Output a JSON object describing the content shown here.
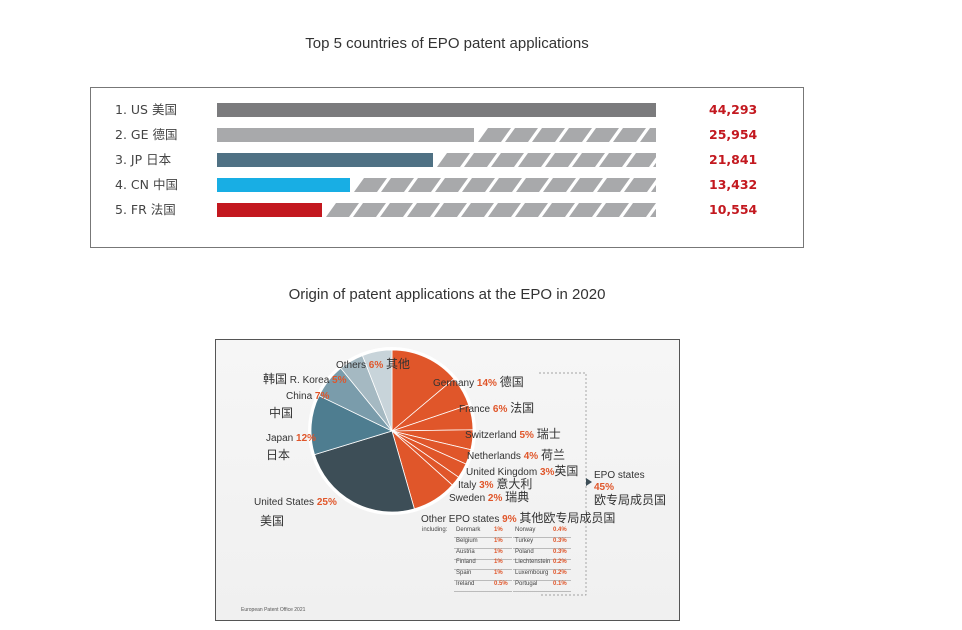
{
  "charts": {
    "bar_title": "Top 5 countries of EPO patent applications",
    "pie_title": "Origin of patent applications at the EPO in 2020"
  },
  "chart_data": [
    {
      "type": "bar",
      "title": "Top 5 countries of EPO patent applications",
      "categories": [
        "1. US 美国",
        "2. GE 德国",
        "3. JP  日本",
        "4. CN 中国",
        "5. FR 法国"
      ],
      "values": [
        44293,
        25954,
        21841,
        13432,
        10554
      ],
      "value_labels": [
        "44,293",
        "25,954",
        "21,841",
        "13,432",
        "10,554"
      ],
      "colors": [
        "#7b7b7d",
        "#a8a9ab",
        "#4f7184",
        "#18aee4",
        "#c3181f"
      ],
      "xlim": [
        0,
        44293
      ]
    },
    {
      "type": "pie",
      "title": "Origin of patent applications at the EPO in 2020",
      "slices": [
        {
          "label": "Germany",
          "cn": "德国",
          "pct_text": "14%",
          "value": 14,
          "color": "#e0562a"
        },
        {
          "label": "France",
          "cn": "法国",
          "pct_text": "6%",
          "value": 6,
          "color": "#e0562a"
        },
        {
          "label": "Switzerland",
          "cn": "瑞士",
          "pct_text": "5%",
          "value": 5,
          "color": "#e0562a"
        },
        {
          "label": "Netherlands",
          "cn": "荷兰",
          "pct_text": "4%",
          "value": 4,
          "color": "#e0562a"
        },
        {
          "label": "United Kingdom",
          "cn": "英国",
          "pct_text": "3%",
          "value": 3,
          "color": "#e0562a"
        },
        {
          "label": "Italy",
          "cn": "意大利",
          "pct_text": "3%",
          "value": 3,
          "color": "#e0562a"
        },
        {
          "label": "Sweden",
          "cn": "瑞典",
          "pct_text": "2%",
          "value": 2,
          "color": "#e0562a"
        },
        {
          "label": "Other EPO states",
          "cn": "其他欧专局成员国",
          "pct_text": "9%",
          "value": 9,
          "color": "#e0562a"
        },
        {
          "label": "United States",
          "cn": "美国",
          "pct_text": "25%",
          "value": 25,
          "color": "#3d4e57"
        },
        {
          "label": "Japan",
          "cn": "日本",
          "pct_text": "12%",
          "value": 12,
          "color": "#4e7d90"
        },
        {
          "label": "China",
          "cn": "中国",
          "pct_text": "7%",
          "value": 7,
          "color": "#7a9cab"
        },
        {
          "label": "R. Korea",
          "cn": "韩国",
          "pct_text": "5%",
          "value": 5,
          "color": "#a5b9c2"
        },
        {
          "label": "Others",
          "cn": "其他",
          "pct_text": "6%",
          "value": 6,
          "color": "#c8d4da"
        }
      ],
      "group_label": {
        "label": "EPO states",
        "pct_text": "45%",
        "cn": "欧专局成员国"
      },
      "including_label": "including:",
      "including": [
        {
          "country": "Denmark",
          "pct": "1%"
        },
        {
          "country": "Belgium",
          "pct": "1%"
        },
        {
          "country": "Austria",
          "pct": "1%"
        },
        {
          "country": "Finland",
          "pct": "1%"
        },
        {
          "country": "Spain",
          "pct": "1%"
        },
        {
          "country": "Ireland",
          "pct": "0.5%"
        },
        {
          "country": "Norway",
          "pct": "0.4%"
        },
        {
          "country": "Turkey",
          "pct": "0.3%"
        },
        {
          "country": "Poland",
          "pct": "0.3%"
        },
        {
          "country": "Liechtenstein",
          "pct": "0.2%"
        },
        {
          "country": "Luxembourg",
          "pct": "0.2%"
        },
        {
          "country": "Portugal",
          "pct": "0.1%"
        }
      ],
      "source": "European Patent Office 2021"
    }
  ]
}
